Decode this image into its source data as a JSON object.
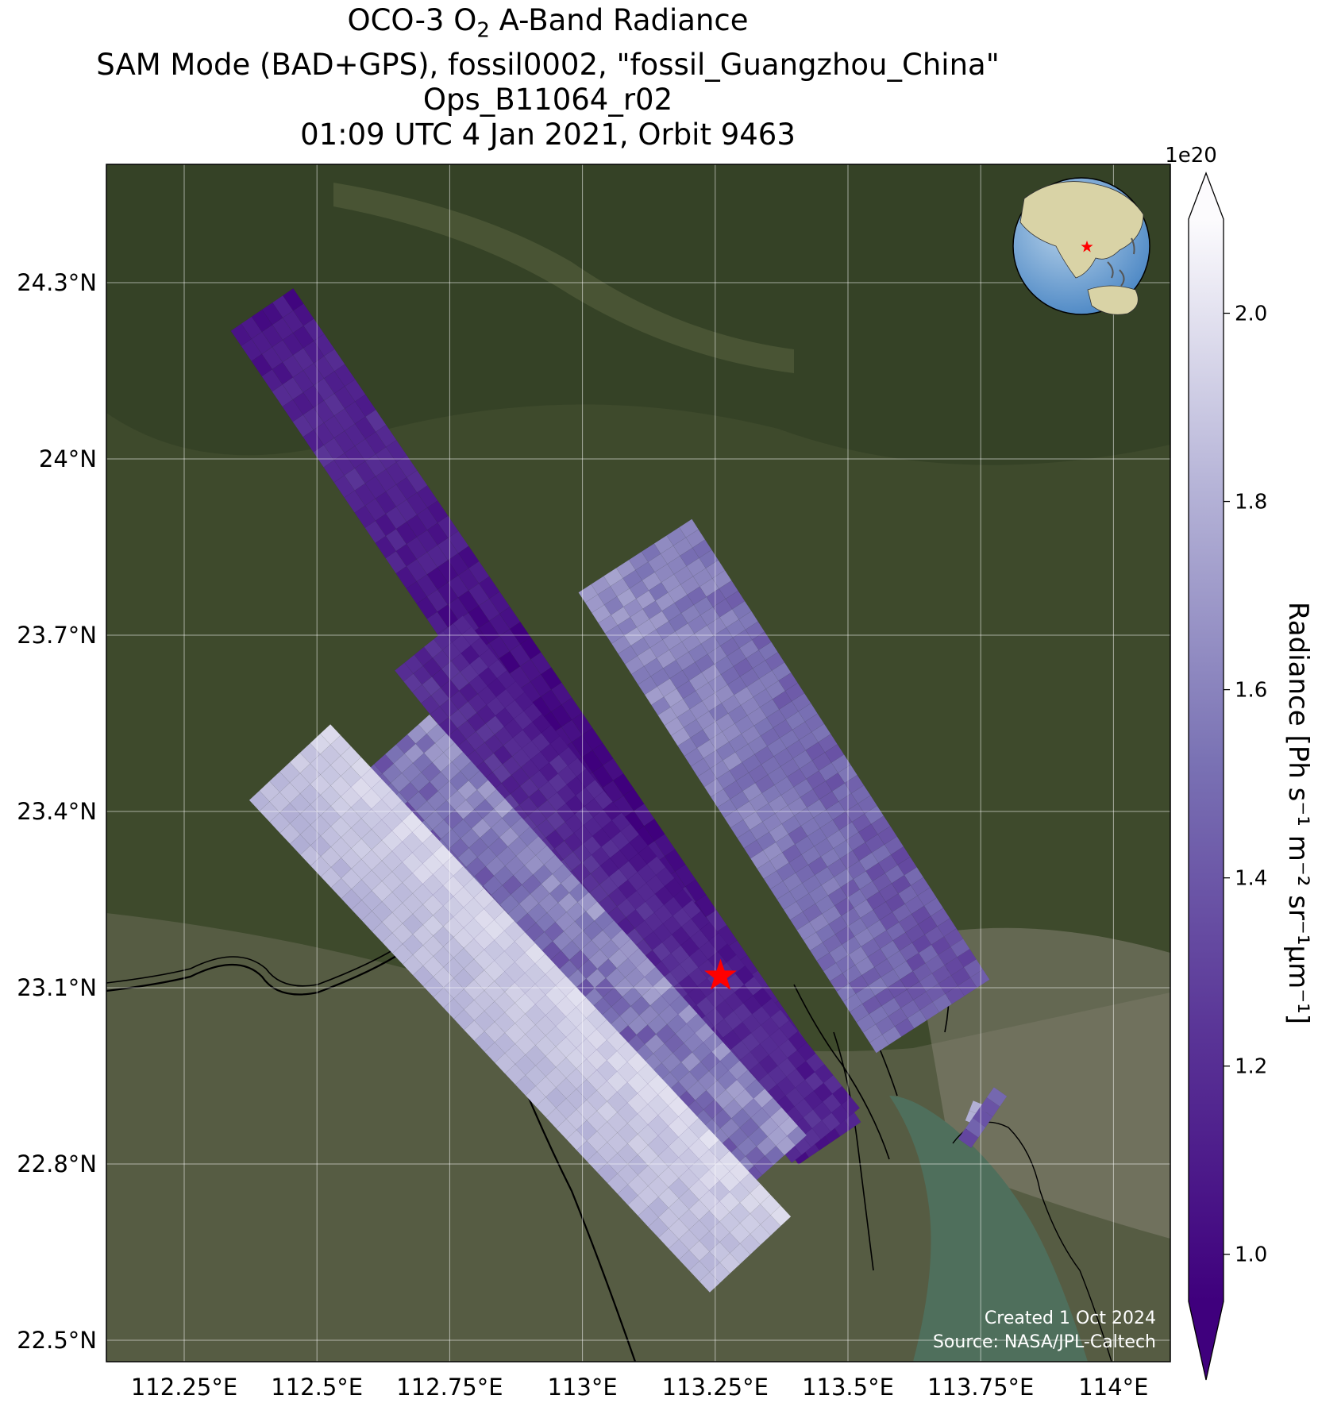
{
  "title": {
    "line1_prefix": "OCO-3 O",
    "line1_sub": "2",
    "line1_suffix": " A-Band Radiance",
    "line2": "SAM Mode (BAD+GPS), fossil0002, \"fossil_Guangzhou_China\"",
    "line3": "Ops_B11064_r02",
    "line4": "01:09 UTC 4 Jan 2021, Orbit 9463"
  },
  "map": {
    "lon_ticks": [
      {
        "value": 112.25,
        "label": "112.25°E"
      },
      {
        "value": 112.5,
        "label": "112.5°E"
      },
      {
        "value": 112.75,
        "label": "112.75°E"
      },
      {
        "value": 113.0,
        "label": "113°E"
      },
      {
        "value": 113.25,
        "label": "113.25°E"
      },
      {
        "value": 113.5,
        "label": "113.5°E"
      },
      {
        "value": 113.75,
        "label": "113.75°E"
      },
      {
        "value": 114.0,
        "label": "114°E"
      }
    ],
    "lat_ticks": [
      {
        "value": 24.3,
        "label": "24.3°N"
      },
      {
        "value": 24.0,
        "label": "24°N"
      },
      {
        "value": 23.7,
        "label": "23.7°N"
      },
      {
        "value": 23.4,
        "label": "23.4°N"
      },
      {
        "value": 23.1,
        "label": "23.1°N"
      },
      {
        "value": 22.8,
        "label": "22.8°N"
      },
      {
        "value": 22.5,
        "label": "22.5°N"
      }
    ],
    "target": {
      "name": "fossil_Guangzhou_China",
      "lon": 113.26,
      "lat": 23.12
    },
    "gridlines": true,
    "inset": "globe with red star at target, top-right"
  },
  "colorbar": {
    "label": "Radiance [Ph s⁻¹ m⁻² sr⁻¹μm⁻¹]",
    "multiplier": "1e20",
    "ticks": [
      "1.0",
      "1.2",
      "1.4",
      "1.6",
      "1.8",
      "2.0"
    ],
    "range": [
      0.95,
      2.1
    ],
    "colormap": "Purples_r",
    "extend": "both"
  },
  "credits": {
    "created": "Created 1 Oct 2024",
    "source": "Source: NASA/JPL-Caltech"
  },
  "colors": {
    "land": "#3e4a2c",
    "water": "#4f6f5c",
    "urban": "#7d7a6c",
    "low": "#3f007d",
    "high": "#fcfbfd"
  }
}
